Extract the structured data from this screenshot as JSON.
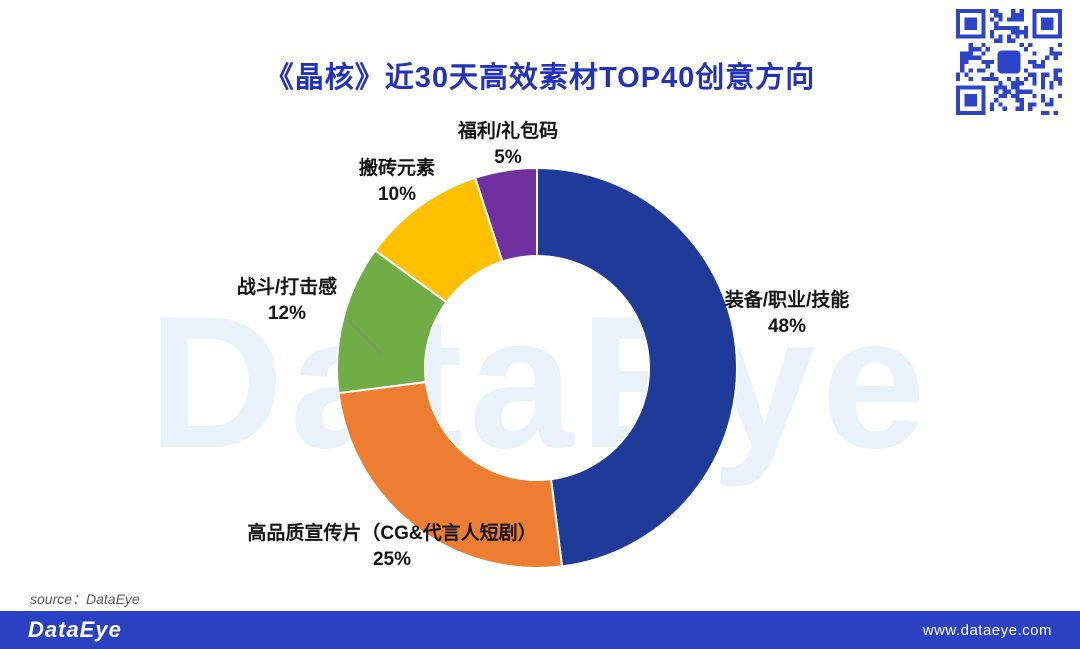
{
  "page": {
    "background": "#FFFFFF",
    "accent_blue": "#2233BB"
  },
  "chart_data": {
    "type": "pie",
    "style": "donut",
    "title": "《晶核》近30天高效素材TOP40创意方向",
    "unit": "%",
    "total": 100,
    "direction": "clockwise",
    "start_angle_deg": 0,
    "legend": "none",
    "labels": "outside",
    "inner_radius_ratio": 0.56,
    "slices": [
      {
        "label": "装备/职业/技能",
        "value": 48,
        "pct_label": "48%",
        "color": "#1F3B99"
      },
      {
        "label": "高品质宣传片（CG&代言人短剧）",
        "value": 25,
        "pct_label": "25%",
        "color": "#ED7D31"
      },
      {
        "label": "战斗/打击感",
        "value": 12,
        "pct_label": "12%",
        "color": "#70AD47"
      },
      {
        "label": "搬砖元素",
        "value": 10,
        "pct_label": "10%",
        "color": "#FFC000"
      },
      {
        "label": "福利/礼包码",
        "value": 5,
        "pct_label": "5%",
        "color": "#7030A0"
      }
    ]
  },
  "header": {
    "qr_icon": "qr-code"
  },
  "watermark": {
    "text": "DataEye",
    "color": "#E9F1FB"
  },
  "source_note": "source：DataEye",
  "footer": {
    "brand": "DataEye",
    "url": "www.dataeye.com",
    "background": "#2B41C4"
  }
}
